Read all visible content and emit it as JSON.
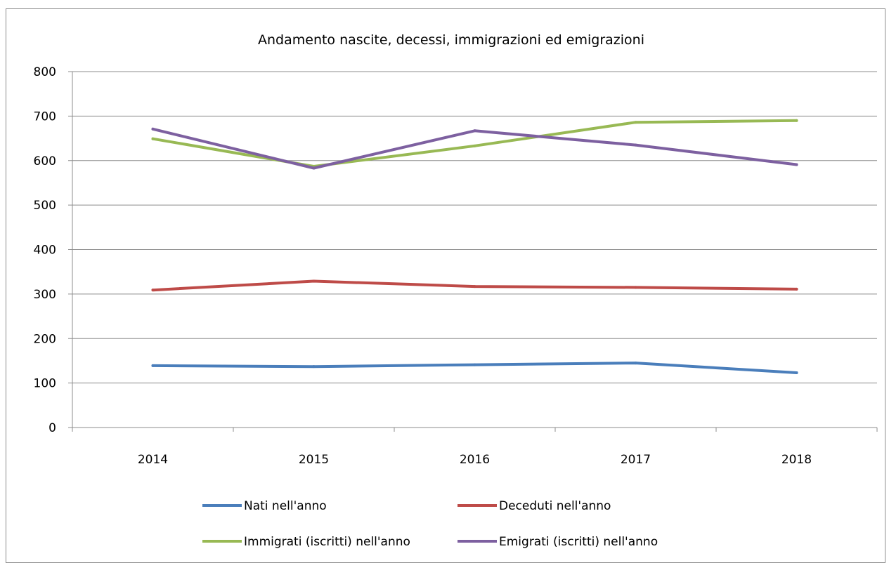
{
  "chart_data": {
    "type": "line",
    "title": "Andamento nascite, decessi, immigrazioni ed emigrazioni",
    "categories": [
      "2014",
      "2015",
      "2016",
      "2017",
      "2018"
    ],
    "y_ticks": [
      "0",
      "100",
      "200",
      "300",
      "400",
      "500",
      "600",
      "700",
      "800"
    ],
    "ylim": [
      0,
      800
    ],
    "grid": true,
    "legend_position": "bottom",
    "series": [
      {
        "name": "Nati nell'anno",
        "color": "#4a7ebb",
        "values": [
          139,
          137,
          141,
          145,
          123
        ]
      },
      {
        "name": "Deceduti nell'anno",
        "color": "#be4b48",
        "values": [
          309,
          329,
          317,
          315,
          311
        ]
      },
      {
        "name": "Immigrati (iscritti) nell'anno",
        "color": "#98b954",
        "values": [
          649,
          587,
          633,
          686,
          690
        ]
      },
      {
        "name": "Emigrati (iscritti) nell'anno",
        "color": "#7d60a0",
        "values": [
          671,
          583,
          667,
          635,
          591
        ]
      }
    ]
  }
}
